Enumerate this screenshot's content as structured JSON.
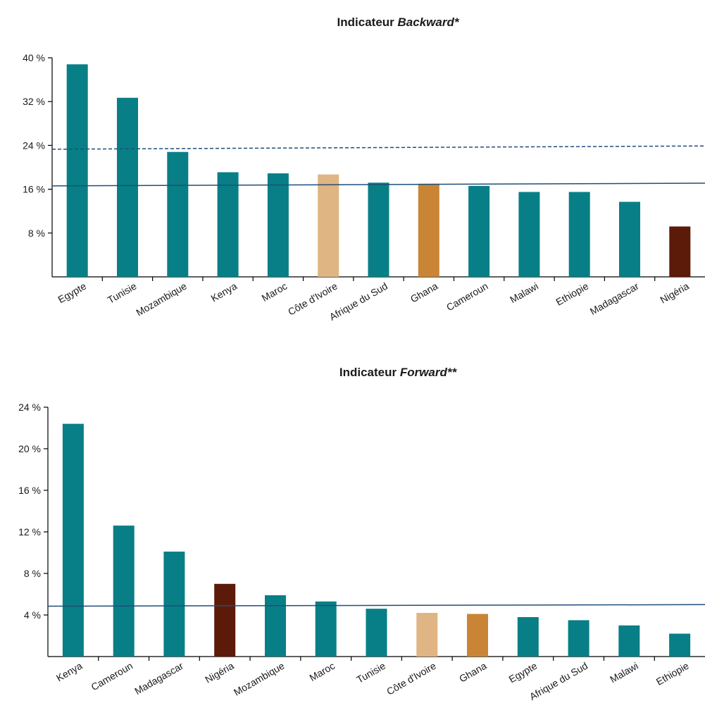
{
  "chart_data": [
    {
      "type": "bar",
      "title": "Indicateur ",
      "title_emphasis": "Backward*",
      "categories": [
        "Egypte",
        "Tunisie",
        "Mozambique",
        "Kenya",
        "Maroc",
        "Côte d'Ivoire",
        "Afrique du Sud",
        "Ghana",
        "Cameroun",
        "Malawi",
        "Ethiopie",
        "Madagascar",
        "Nigéria"
      ],
      "values": [
        38.8,
        32.7,
        22.8,
        19.1,
        18.9,
        18.7,
        17.2,
        17.0,
        16.6,
        15.5,
        15.5,
        13.7,
        9.2
      ],
      "bar_colors": [
        "#087f86",
        "#087f86",
        "#087f86",
        "#087f86",
        "#087f86",
        "#dfb583",
        "#087f86",
        "#c98535",
        "#087f86",
        "#087f86",
        "#087f86",
        "#087f86",
        "#5c1a08"
      ],
      "ylim": [
        0,
        40
      ],
      "yticks": [
        8,
        16,
        24,
        32,
        40
      ],
      "ytick_labels": [
        "8 %",
        "16 %",
        "24 %",
        "32 %",
        "40 %"
      ],
      "xlabel": "",
      "ylabel": "",
      "reference_lines": [
        {
          "style": "dashed",
          "color": "#1f4e79",
          "y_start": 23.3,
          "y_end": 23.9
        },
        {
          "style": "solid",
          "color": "#1f4e79",
          "y_start": 16.6,
          "y_end": 17.1
        }
      ],
      "grid": false
    },
    {
      "type": "bar",
      "title": "Indicateur ",
      "title_emphasis": "Forward**",
      "categories": [
        "Kenya",
        "Cameroun",
        "Madagascar",
        "Nigéria",
        "Mozambique",
        "Maroc",
        "Tunisie",
        "Côte d'Ivoire",
        "Ghana",
        "Egypte",
        "Afrique du Sud",
        "Malawi",
        "Ethiopie"
      ],
      "values": [
        22.4,
        12.6,
        10.1,
        7.0,
        5.9,
        5.3,
        4.6,
        4.2,
        4.1,
        3.8,
        3.5,
        3.0,
        2.2
      ],
      "bar_colors": [
        "#087f86",
        "#087f86",
        "#087f86",
        "#5c1a08",
        "#087f86",
        "#087f86",
        "#087f86",
        "#dfb583",
        "#c98535",
        "#087f86",
        "#087f86",
        "#087f86",
        "#087f86"
      ],
      "ylim": [
        0,
        24
      ],
      "yticks": [
        4,
        8,
        12,
        16,
        20,
        24
      ],
      "ytick_labels": [
        "4 %",
        "8 %",
        "12 %",
        "16 %",
        "20 %",
        "24 %"
      ],
      "xlabel": "",
      "ylabel": "",
      "reference_lines": [
        {
          "style": "solid",
          "color": "#1f4e79",
          "y_start": 4.85,
          "y_end": 5.0
        }
      ],
      "grid": false
    }
  ]
}
